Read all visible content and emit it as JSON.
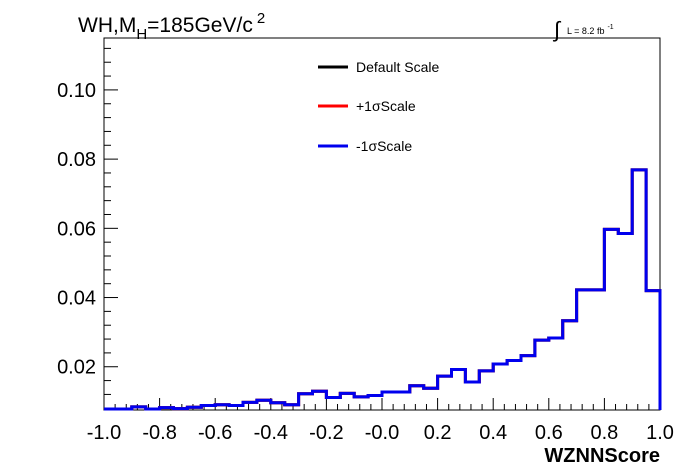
{
  "chart_data": {
    "type": "line",
    "title": {
      "prefix": "WH,M",
      "subscript": "H",
      "main": "=185GeV/c",
      "superscript": "2"
    },
    "lumi": {
      "integral_symbol": "∫",
      "text": "L = 8.2 fb",
      "exponent": "-1"
    },
    "xlabel": "WZNNScore",
    "ylabel": "",
    "xlim": [
      -1.0,
      1.0
    ],
    "ylim": [
      0.0075,
      0.115
    ],
    "x_ticks": [
      "-1.0",
      "-0.8",
      "-0.6",
      "-0.4",
      "-0.2",
      "-0.0",
      "0.2",
      "0.4",
      "0.6",
      "0.8",
      "1.0"
    ],
    "x_tick_values": [
      -1.0,
      -0.8,
      -0.6,
      -0.4,
      -0.2,
      0.0,
      0.2,
      0.4,
      0.6,
      0.8,
      1.0
    ],
    "y_ticks": [
      "0.02",
      "0.04",
      "0.06",
      "0.08",
      "0.10"
    ],
    "y_tick_values": [
      0.02,
      0.04,
      0.06,
      0.08,
      0.1
    ],
    "grid": false,
    "legend_position": "top-center",
    "bin_edges": [
      -1.0,
      -0.95,
      -0.9,
      -0.85,
      -0.8,
      -0.75,
      -0.7,
      -0.65,
      -0.6,
      -0.55,
      -0.5,
      -0.45,
      -0.4,
      -0.35,
      -0.3,
      -0.25,
      -0.2,
      -0.15,
      -0.1,
      -0.05,
      0.0,
      0.05,
      0.1,
      0.15,
      0.2,
      0.25,
      0.3,
      0.35,
      0.4,
      0.45,
      0.5,
      0.55,
      0.6,
      0.65,
      0.7,
      0.75,
      0.8,
      0.85,
      0.9,
      0.95,
      1.0
    ],
    "series": [
      {
        "name": "Default Scale",
        "color": "#000000",
        "values": [
          0.0078,
          0.0078,
          0.0084,
          0.0078,
          0.0082,
          0.0079,
          0.0083,
          0.0088,
          0.009,
          0.0088,
          0.0097,
          0.0103,
          0.0096,
          0.009,
          0.0122,
          0.0129,
          0.0111,
          0.0123,
          0.0113,
          0.0117,
          0.0127,
          0.0127,
          0.0145,
          0.0138,
          0.0173,
          0.0192,
          0.0156,
          0.0188,
          0.0208,
          0.0218,
          0.0232,
          0.0277,
          0.0283,
          0.0333,
          0.0422,
          0.0422,
          0.0597,
          0.0585,
          0.0769,
          0.042
        ]
      },
      {
        "name": "+1σScale",
        "color": "#ff0000",
        "values": [
          0.0078,
          0.0078,
          0.0084,
          0.0078,
          0.0082,
          0.0079,
          0.0083,
          0.0088,
          0.009,
          0.0088,
          0.0097,
          0.0103,
          0.0096,
          0.009,
          0.0122,
          0.0129,
          0.0111,
          0.0123,
          0.0113,
          0.0117,
          0.0127,
          0.0127,
          0.0145,
          0.0138,
          0.0173,
          0.0192,
          0.0156,
          0.0188,
          0.0208,
          0.0218,
          0.0232,
          0.0277,
          0.0283,
          0.0333,
          0.0422,
          0.0422,
          0.0597,
          0.0585,
          0.0769,
          0.042
        ]
      },
      {
        "name": "-1σScale",
        "color": "#0000ee",
        "values": [
          0.0078,
          0.0078,
          0.0084,
          0.0078,
          0.0082,
          0.0079,
          0.0083,
          0.0088,
          0.009,
          0.0088,
          0.0097,
          0.0103,
          0.0096,
          0.009,
          0.0122,
          0.0129,
          0.0111,
          0.0123,
          0.0113,
          0.0117,
          0.0127,
          0.0127,
          0.0145,
          0.0138,
          0.0173,
          0.0192,
          0.0156,
          0.0188,
          0.0208,
          0.0218,
          0.0232,
          0.0277,
          0.0283,
          0.0333,
          0.0422,
          0.0422,
          0.0597,
          0.0585,
          0.0769,
          0.042
        ]
      }
    ]
  }
}
